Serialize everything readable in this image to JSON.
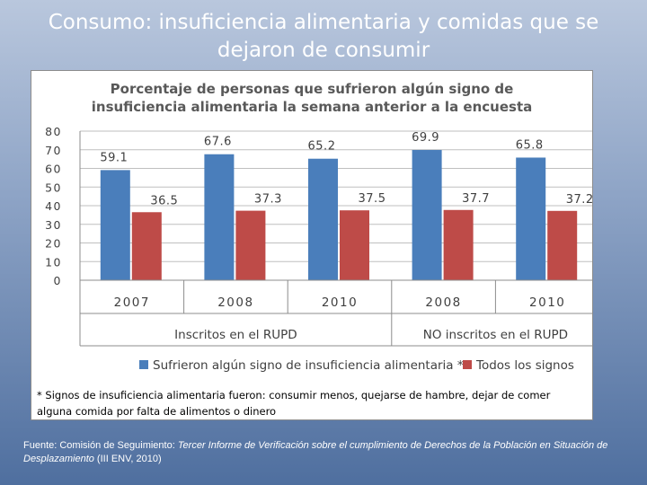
{
  "slide": {
    "title": "Consumo: insuficiencia alimentaria y comidas que se dejaron de consumir"
  },
  "chart_data": {
    "type": "bar",
    "title_line1": "Porcentaje de personas que sufrieron algún signo de",
    "title_line2": "insuficiencia alimentaria la semana anterior a la encuesta",
    "categories": [
      "2007",
      "2008",
      "2010",
      "2008",
      "2010"
    ],
    "groups": [
      {
        "label": "Inscritos en el RUPD",
        "start": 0,
        "end": 2
      },
      {
        "label": "NO inscritos en el RUPD",
        "start": 3,
        "end": 4
      }
    ],
    "series": [
      {
        "name": "Sufrieron algún signo de insuficiencia alimentaria *",
        "color": "#4a7ebb",
        "values": [
          59.1,
          67.6,
          65.2,
          69.9,
          65.8
        ]
      },
      {
        "name": "Todos los signos",
        "color": "#be4b48",
        "values": [
          36.5,
          37.3,
          37.5,
          37.7,
          37.2
        ]
      }
    ],
    "ylim": [
      0,
      80
    ],
    "yticks": [
      "0",
      "10",
      "20",
      "30",
      "40",
      "50",
      "60",
      "70",
      "80"
    ],
    "value_labels": [
      [
        "59.1",
        "67.6",
        "65.2",
        "69.9",
        "65.8"
      ],
      [
        "36.5",
        "37.3",
        "37.5",
        "37.7",
        "37.2"
      ]
    ],
    "grid": true,
    "legend_position": "bottom",
    "footnote": "* Signos de insuficiencia alimentaria fueron: consumir menos, quejarse de hambre, dejar de comer alguna comida por falta de alimentos o dinero"
  },
  "source": {
    "prefix": "Fuente: Comisión de Seguimiento: ",
    "italic": "Tercer Informe de Verificación sobre el cumplimiento de Derechos de la Población en Situación de Desplazamiento",
    "suffix": " (III ENV, 2010)"
  }
}
